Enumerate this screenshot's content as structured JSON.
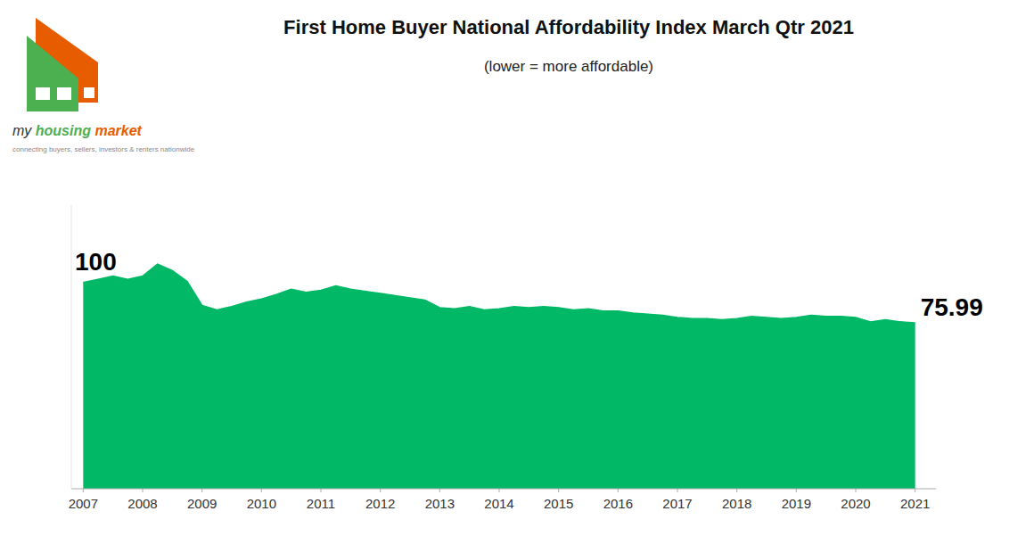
{
  "chart_data": {
    "type": "area",
    "title": "First Home Buyer National Affordability Index March Qtr 2021",
    "subtitle": "(lower = more affordable)",
    "annotations": [
      "100",
      "75.99"
    ],
    "logo": [
      "my",
      "housing",
      "market",
      "connecting buyers, sellers, investors & renters nationwide"
    ],
    "color": "#00B865",
    "x": [
      2007.0,
      2007.25,
      2007.5,
      2007.75,
      2008.0,
      2008.25,
      2008.5,
      2008.75,
      2009.0,
      2009.25,
      2009.5,
      2009.75,
      2010.0,
      2010.25,
      2010.5,
      2010.75,
      2011.0,
      2011.25,
      2011.5,
      2011.75,
      2012.0,
      2012.25,
      2012.5,
      2012.75,
      2013.0,
      2013.25,
      2013.5,
      2013.75,
      2014.0,
      2014.25,
      2014.5,
      2014.75,
      2015.0,
      2015.25,
      2015.5,
      2015.75,
      2016.0,
      2016.25,
      2016.5,
      2016.75,
      2017.0,
      2017.25,
      2017.5,
      2017.75,
      2018.0,
      2018.25,
      2018.5,
      2018.75,
      2019.0,
      2019.25,
      2019.5,
      2019.75,
      2020.0,
      2020.25,
      2020.5,
      2020.75,
      2021.0
    ],
    "values": [
      94.5,
      96.0,
      97.5,
      96.0,
      97.5,
      103.0,
      100.0,
      95.0,
      84.0,
      82.0,
      83.5,
      85.5,
      87.0,
      89.0,
      91.5,
      90.0,
      91.0,
      93.0,
      91.5,
      90.5,
      89.5,
      88.5,
      87.5,
      86.5,
      83.0,
      82.5,
      83.5,
      82.0,
      82.5,
      83.5,
      83.0,
      83.5,
      83.0,
      82.0,
      82.5,
      81.5,
      81.5,
      80.5,
      80.0,
      79.5,
      78.5,
      78.0,
      78.0,
      77.5,
      78.0,
      79.0,
      78.5,
      78.0,
      78.5,
      79.5,
      79.0,
      79.0,
      78.5,
      76.5,
      77.5,
      76.5,
      75.99
    ],
    "xlim": [
      2006.8,
      2021.35
    ],
    "xticks": [
      2007,
      2008,
      2009,
      2010,
      2011,
      2012,
      2013,
      2014,
      2015,
      2016,
      2017,
      2018,
      2019,
      2020,
      2021
    ],
    "ylim": [
      0,
      130
    ],
    "tick_labels": "x",
    "grid": false
  }
}
